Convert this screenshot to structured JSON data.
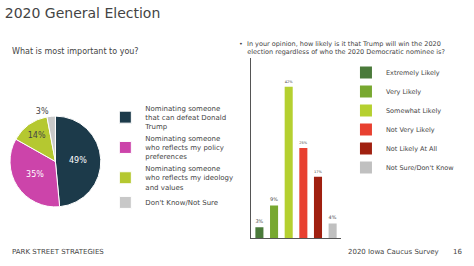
{
  "chart_data": [
    {
      "type": "pie",
      "title": "2020 General Election",
      "subtitle": "What is most important to you?",
      "categories": [
        "Nominating someone\nthat can defeat Donald\nTrump",
        "Nominating someone\nwho reflects my policy\npreferences",
        "Nominating someone\nwho reflects my ideology\nand values",
        "Don't Know/Not Sure"
      ],
      "values": [
        49,
        35,
        14,
        3
      ],
      "value_labels": [
        "49%",
        "35%",
        "14%",
        "3%"
      ],
      "colors": [
        "#1c3a4a",
        "#cc44aa",
        "#b5c830",
        "#c8c8c8"
      ],
      "data_labels": true,
      "legend": "right",
      "annotations": [
        "PARK STREET STRATEGIES",
        "2020 Iowa Caucus Survey",
        "16"
      ]
    },
    {
      "type": "bar",
      "title": "•  In your opinion, how likely is it that Trump will win the 2020\n    election regardless of who the 2020 Democratic nominee is?",
      "categories": [
        "Extremely Likely",
        "Very Likely",
        "Somewhat Likely",
        "Not Very Likely",
        "Not Likely At All",
        "Not Sure/Don't Know"
      ],
      "values": [
        3,
        9,
        42,
        25,
        17,
        4
      ],
      "value_labels": [
        "3%",
        "9%",
        "42%",
        "25%",
        "17%",
        "4%"
      ],
      "colors": [
        "#4a7a3a",
        "#78a830",
        "#b5d030",
        "#e84030",
        "#a02010",
        "#c0c0c0"
      ],
      "ylim": [
        0,
        50
      ],
      "yticks": [],
      "grid": false,
      "legend": "upper right",
      "data_labels": true,
      "tick_labels": false
    }
  ]
}
